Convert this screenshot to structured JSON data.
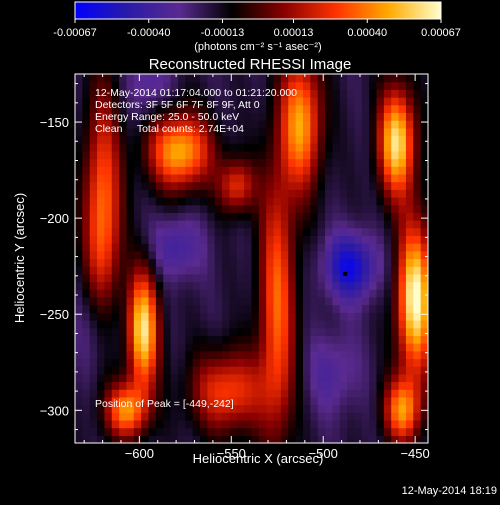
{
  "colorbar": {
    "tick_labels": [
      "-0.00067",
      "-0.00040",
      "-0.00013",
      "0.00013",
      "0.00040",
      "0.00067"
    ],
    "tick_values": [
      -0.00067,
      -0.0004,
      -0.00013,
      0.00013,
      0.0004,
      0.00067
    ],
    "range": [
      -0.00067,
      0.00067
    ],
    "units": "(photons cm⁻² s⁻¹ asec⁻²)",
    "colors": [
      "#0000ff",
      "#2a1aa8",
      "#5a2a90",
      "#000000",
      "#8a0000",
      "#ff3300",
      "#ffaa00",
      "#ffffcc"
    ]
  },
  "chart_data": {
    "type": "heatmap",
    "title": "Reconstructed RHESSI Image",
    "xlabel": "Heliocentric X (arcsec)",
    "ylabel": "Heliocentric Y (arcsec)",
    "xlim": [
      -635,
      -443
    ],
    "ylim": [
      -317,
      -125
    ],
    "x_ticks": [
      -600,
      -550,
      -500,
      -450
    ],
    "x_tick_labels": [
      "−600",
      "−550",
      "−500",
      "−450"
    ],
    "y_ticks": [
      -300,
      -250,
      -200,
      -150
    ],
    "y_tick_labels": [
      "−300",
      "−250",
      "−200",
      "−150"
    ],
    "peak": [
      -449,
      -242
    ],
    "marker": [
      -488,
      -229
    ],
    "annotations": [
      "12-May-2014 01:17:04.000 to 01:21:20.000",
      "Detectors: 3F 5F 6F 7F 8F 9F, Att 0",
      "Energy Range: 25.0 - 50.0 keV",
      "Clean     Total counts: 2.74E+04"
    ],
    "peak_label": "Position of Peak = [-449,-242]",
    "sources": [
      {
        "x": -598,
        "y": -258,
        "v": 0.0006,
        "sx": 6,
        "sy": 22
      },
      {
        "x": -607,
        "y": -300,
        "v": 0.0004,
        "sx": 8,
        "sy": 10
      },
      {
        "x": -620,
        "y": -200,
        "v": 0.0004,
        "sx": 7,
        "sy": 45
      },
      {
        "x": -578,
        "y": -165,
        "v": 0.0005,
        "sx": 12,
        "sy": 14
      },
      {
        "x": -547,
        "y": -183,
        "v": 0.00025,
        "sx": 7,
        "sy": 10
      },
      {
        "x": -552,
        "y": -290,
        "v": 0.0003,
        "sx": 14,
        "sy": 15
      },
      {
        "x": -525,
        "y": -245,
        "v": 0.00035,
        "sx": 7,
        "sy": 50
      },
      {
        "x": -512,
        "y": -150,
        "v": 0.00045,
        "sx": 8,
        "sy": 25
      },
      {
        "x": -460,
        "y": -160,
        "v": 0.0006,
        "sx": 7,
        "sy": 20
      },
      {
        "x": -450,
        "y": -242,
        "v": 0.00067,
        "sx": 7,
        "sy": 28
      },
      {
        "x": -457,
        "y": -300,
        "v": 0.0004,
        "sx": 7,
        "sy": 12
      },
      {
        "x": -485,
        "y": -225,
        "v": -0.0006,
        "sx": 10,
        "sy": 12
      },
      {
        "x": -580,
        "y": -215,
        "v": -0.0004,
        "sx": 10,
        "sy": 12
      },
      {
        "x": -595,
        "y": -130,
        "v": -0.00035,
        "sx": 8,
        "sy": 12
      },
      {
        "x": -622,
        "y": -255,
        "v": -0.0004,
        "sx": 8,
        "sy": 20
      },
      {
        "x": -495,
        "y": -280,
        "v": -0.00035,
        "sx": 10,
        "sy": 15
      }
    ]
  },
  "timestamp": "12-May-2014 18:19"
}
